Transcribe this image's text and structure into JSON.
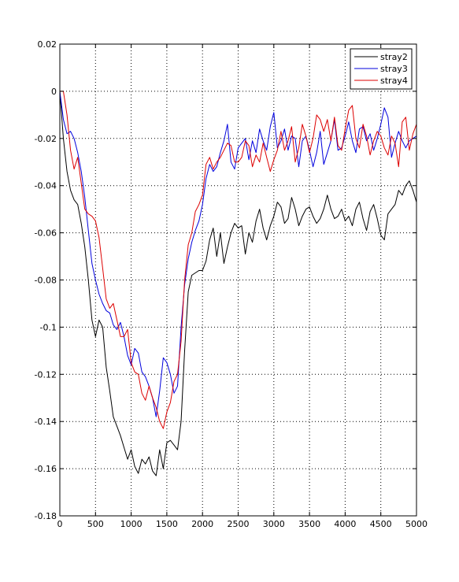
{
  "chart_data": {
    "type": "line",
    "title": "",
    "xlabel": "",
    "ylabel": "",
    "xlim": [
      0,
      5000
    ],
    "ylim": [
      -0.18,
      0.02
    ],
    "xticks": [
      0,
      500,
      1000,
      1500,
      2000,
      2500,
      3000,
      3500,
      4000,
      4500,
      5000
    ],
    "yticks": [
      0.02,
      0,
      -0.02,
      -0.04,
      -0.06,
      -0.08,
      -0.1,
      -0.12,
      -0.14,
      -0.16,
      -0.18
    ],
    "xtick_labels": [
      "0",
      "500",
      "1000",
      "1500",
      "2000",
      "2500",
      "3000",
      "3500",
      "4000",
      "4500",
      "5000"
    ],
    "ytick_labels": [
      "0.02",
      "0",
      "-0.02",
      "-0.04",
      "-0.06",
      "-0.08",
      "-0.1",
      "-0.12",
      "-0.14",
      "-0.16",
      "-0.18"
    ],
    "grid": true,
    "legend_position": "top-right",
    "series": [
      {
        "name": "stray2",
        "color": "#000000",
        "x": [
          0,
          50,
          100,
          150,
          200,
          250,
          300,
          350,
          400,
          450,
          500,
          550,
          600,
          650,
          700,
          750,
          800,
          850,
          900,
          950,
          1000,
          1050,
          1100,
          1150,
          1200,
          1250,
          1300,
          1350,
          1400,
          1450,
          1500,
          1550,
          1600,
          1650,
          1700,
          1750,
          1800,
          1850,
          1900,
          1950,
          2000,
          2050,
          2100,
          2150,
          2200,
          2250,
          2300,
          2350,
          2400,
          2450,
          2500,
          2550,
          2600,
          2650,
          2700,
          2750,
          2800,
          2850,
          2900,
          2950,
          3000,
          3050,
          3100,
          3150,
          3200,
          3250,
          3300,
          3350,
          3400,
          3450,
          3500,
          3550,
          3600,
          3650,
          3700,
          3750,
          3800,
          3850,
          3900,
          3950,
          4000,
          4050,
          4100,
          4150,
          4200,
          4250,
          4300,
          4350,
          4400,
          4450,
          4500,
          4550,
          4600,
          4650,
          4700,
          4750,
          4800,
          4850,
          4900,
          4950,
          5000
        ],
        "y": [
          0,
          -0.02,
          -0.034,
          -0.042,
          -0.046,
          -0.048,
          -0.056,
          -0.066,
          -0.08,
          -0.097,
          -0.104,
          -0.097,
          -0.1,
          -0.117,
          -0.127,
          -0.138,
          -0.142,
          -0.146,
          -0.151,
          -0.156,
          -0.152,
          -0.159,
          -0.162,
          -0.156,
          -0.158,
          -0.155,
          -0.161,
          -0.163,
          -0.152,
          -0.16,
          -0.149,
          -0.148,
          -0.15,
          -0.152,
          -0.14,
          -0.11,
          -0.085,
          -0.078,
          -0.077,
          -0.076,
          -0.076,
          -0.072,
          -0.063,
          -0.058,
          -0.07,
          -0.06,
          -0.073,
          -0.066,
          -0.06,
          -0.056,
          -0.058,
          -0.057,
          -0.069,
          -0.06,
          -0.064,
          -0.055,
          -0.05,
          -0.058,
          -0.063,
          -0.057,
          -0.053,
          -0.047,
          -0.049,
          -0.056,
          -0.054,
          -0.045,
          -0.05,
          -0.057,
          -0.053,
          -0.05,
          -0.049,
          -0.053,
          -0.056,
          -0.054,
          -0.05,
          -0.044,
          -0.05,
          -0.054,
          -0.053,
          -0.05,
          -0.055,
          -0.053,
          -0.057,
          -0.05,
          -0.047,
          -0.054,
          -0.059,
          -0.051,
          -0.048,
          -0.054,
          -0.061,
          -0.063,
          -0.052,
          -0.05,
          -0.048,
          -0.042,
          -0.044,
          -0.04,
          -0.038,
          -0.042,
          -0.047
        ]
      },
      {
        "name": "stray3",
        "color": "#0000dd",
        "x": [
          0,
          50,
          100,
          150,
          200,
          250,
          300,
          350,
          400,
          450,
          500,
          550,
          600,
          650,
          700,
          750,
          800,
          850,
          900,
          950,
          1000,
          1050,
          1100,
          1150,
          1200,
          1250,
          1300,
          1350,
          1400,
          1450,
          1500,
          1550,
          1600,
          1650,
          1700,
          1750,
          1800,
          1850,
          1900,
          1950,
          2000,
          2050,
          2100,
          2150,
          2200,
          2250,
          2300,
          2350,
          2400,
          2450,
          2500,
          2550,
          2600,
          2650,
          2700,
          2750,
          2800,
          2850,
          2900,
          2950,
          3000,
          3050,
          3100,
          3150,
          3200,
          3250,
          3300,
          3350,
          3400,
          3450,
          3500,
          3550,
          3600,
          3650,
          3700,
          3750,
          3800,
          3850,
          3900,
          3950,
          4000,
          4050,
          4100,
          4150,
          4200,
          4250,
          4300,
          4350,
          4400,
          4450,
          4500,
          4550,
          4600,
          4650,
          4700,
          4750,
          4800,
          4850,
          4900,
          4950,
          5000
        ],
        "y": [
          0,
          -0.012,
          -0.018,
          -0.017,
          -0.02,
          -0.026,
          -0.034,
          -0.045,
          -0.059,
          -0.073,
          -0.08,
          -0.086,
          -0.09,
          -0.093,
          -0.094,
          -0.099,
          -0.101,
          -0.098,
          -0.104,
          -0.112,
          -0.116,
          -0.109,
          -0.111,
          -0.119,
          -0.121,
          -0.125,
          -0.13,
          -0.138,
          -0.127,
          -0.113,
          -0.115,
          -0.12,
          -0.128,
          -0.125,
          -0.1,
          -0.082,
          -0.071,
          -0.064,
          -0.059,
          -0.055,
          -0.048,
          -0.037,
          -0.031,
          -0.034,
          -0.032,
          -0.026,
          -0.021,
          -0.014,
          -0.03,
          -0.033,
          -0.024,
          -0.022,
          -0.02,
          -0.029,
          -0.021,
          -0.026,
          -0.016,
          -0.021,
          -0.025,
          -0.015,
          -0.009,
          -0.024,
          -0.021,
          -0.016,
          -0.025,
          -0.019,
          -0.02,
          -0.032,
          -0.021,
          -0.019,
          -0.025,
          -0.032,
          -0.026,
          -0.017,
          -0.031,
          -0.026,
          -0.021,
          -0.012,
          -0.025,
          -0.024,
          -0.019,
          -0.013,
          -0.021,
          -0.026,
          -0.016,
          -0.015,
          -0.021,
          -0.018,
          -0.025,
          -0.02,
          -0.014,
          -0.007,
          -0.011,
          -0.028,
          -0.022,
          -0.017,
          -0.021,
          -0.024,
          -0.021,
          -0.02,
          -0.019
        ]
      },
      {
        "name": "stray4",
        "color": "#dd0000",
        "x": [
          0,
          50,
          100,
          150,
          200,
          250,
          300,
          350,
          400,
          450,
          500,
          550,
          600,
          650,
          700,
          750,
          800,
          850,
          900,
          950,
          1000,
          1050,
          1100,
          1150,
          1200,
          1250,
          1300,
          1350,
          1400,
          1450,
          1500,
          1550,
          1600,
          1650,
          1700,
          1750,
          1800,
          1850,
          1900,
          1950,
          2000,
          2050,
          2100,
          2150,
          2200,
          2250,
          2300,
          2350,
          2400,
          2450,
          2500,
          2550,
          2600,
          2650,
          2700,
          2750,
          2800,
          2850,
          2900,
          2950,
          3000,
          3050,
          3100,
          3150,
          3200,
          3250,
          3300,
          3350,
          3400,
          3450,
          3500,
          3550,
          3600,
          3650,
          3700,
          3750,
          3800,
          3850,
          3900,
          3950,
          4000,
          4050,
          4100,
          4150,
          4200,
          4250,
          4300,
          4350,
          4400,
          4450,
          4500,
          4550,
          4600,
          4650,
          4700,
          4750,
          4800,
          4850,
          4900,
          4950,
          5000
        ],
        "y": [
          0,
          0,
          -0.01,
          -0.025,
          -0.033,
          -0.028,
          -0.039,
          -0.05,
          -0.052,
          -0.053,
          -0.055,
          -0.062,
          -0.075,
          -0.088,
          -0.092,
          -0.09,
          -0.097,
          -0.104,
          -0.104,
          -0.101,
          -0.115,
          -0.119,
          -0.12,
          -0.128,
          -0.131,
          -0.125,
          -0.13,
          -0.134,
          -0.14,
          -0.143,
          -0.136,
          -0.132,
          -0.123,
          -0.12,
          -0.106,
          -0.08,
          -0.065,
          -0.06,
          -0.051,
          -0.048,
          -0.044,
          -0.031,
          -0.028,
          -0.033,
          -0.03,
          -0.028,
          -0.025,
          -0.022,
          -0.023,
          -0.03,
          -0.03,
          -0.028,
          -0.021,
          -0.023,
          -0.032,
          -0.027,
          -0.03,
          -0.022,
          -0.028,
          -0.034,
          -0.029,
          -0.025,
          -0.017,
          -0.025,
          -0.021,
          -0.015,
          -0.03,
          -0.024,
          -0.014,
          -0.019,
          -0.026,
          -0.02,
          -0.01,
          -0.012,
          -0.017,
          -0.012,
          -0.021,
          -0.011,
          -0.023,
          -0.025,
          -0.016,
          -0.008,
          -0.006,
          -0.02,
          -0.024,
          -0.014,
          -0.019,
          -0.027,
          -0.021,
          -0.017,
          -0.019,
          -0.024,
          -0.027,
          -0.019,
          -0.022,
          -0.032,
          -0.013,
          -0.011,
          -0.025,
          -0.018,
          -0.014
        ]
      }
    ]
  }
}
